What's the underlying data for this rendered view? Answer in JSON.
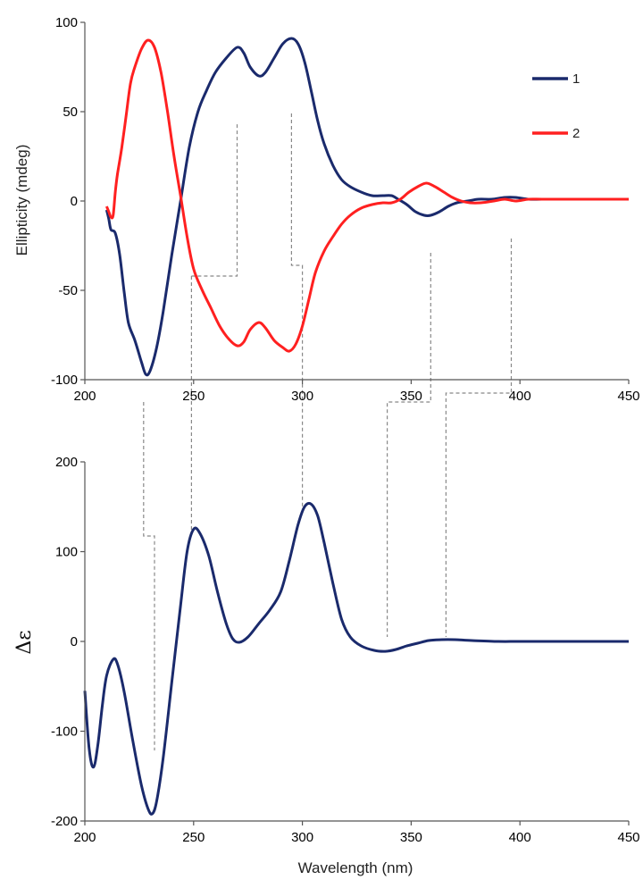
{
  "chart_data": [
    {
      "type": "line",
      "xlabel": "",
      "ylabel": "Ellipticity (mdeg)",
      "xlim": [
        200,
        450
      ],
      "ylim": [
        -100,
        100
      ],
      "x_ticks": [
        "200",
        "250",
        "300",
        "350",
        "400",
        "450"
      ],
      "y_ticks": [
        "-100",
        "-50",
        "0",
        "50",
        "100"
      ],
      "legend_position": "top-right",
      "grid": false,
      "series": [
        {
          "name": "1",
          "color": "#1a2a6c",
          "points": [
            [
              210,
              -5
            ],
            [
              211,
              -10
            ],
            [
              212,
              -16
            ],
            [
              214,
              -18
            ],
            [
              216,
              -30
            ],
            [
              218,
              -50
            ],
            [
              220,
              -68
            ],
            [
              223,
              -78
            ],
            [
              226,
              -90
            ],
            [
              228,
              -97
            ],
            [
              230,
              -95
            ],
            [
              233,
              -82
            ],
            [
              236,
              -62
            ],
            [
              240,
              -30
            ],
            [
              244,
              0
            ],
            [
              248,
              30
            ],
            [
              252,
              50
            ],
            [
              256,
              62
            ],
            [
              260,
              72
            ],
            [
              265,
              80
            ],
            [
              270,
              86
            ],
            [
              273,
              83
            ],
            [
              276,
              75
            ],
            [
              280,
              70
            ],
            [
              283,
              72
            ],
            [
              287,
              80
            ],
            [
              291,
              88
            ],
            [
              295,
              91
            ],
            [
              298,
              88
            ],
            [
              301,
              78
            ],
            [
              304,
              62
            ],
            [
              307,
              45
            ],
            [
              310,
              32
            ],
            [
              314,
              20
            ],
            [
              318,
              12
            ],
            [
              322,
              8
            ],
            [
              327,
              5
            ],
            [
              332,
              3
            ],
            [
              337,
              3
            ],
            [
              341,
              3
            ],
            [
              344,
              1
            ],
            [
              348,
              -2
            ],
            [
              352,
              -6
            ],
            [
              356,
              -8
            ],
            [
              359,
              -8
            ],
            [
              363,
              -6
            ],
            [
              367,
              -3
            ],
            [
              371,
              -1
            ],
            [
              376,
              0
            ],
            [
              381,
              1
            ],
            [
              387,
              1
            ],
            [
              393,
              2
            ],
            [
              398,
              2
            ],
            [
              404,
              1
            ],
            [
              410,
              1
            ],
            [
              420,
              1
            ],
            [
              430,
              1
            ],
            [
              440,
              1
            ],
            [
              450,
              1
            ]
          ]
        },
        {
          "name": "2",
          "color": "#ff2020",
          "points": [
            [
              210,
              -3
            ],
            [
              211,
              -6
            ],
            [
              212,
              -9
            ],
            [
              213,
              -8
            ],
            [
              214,
              5
            ],
            [
              215,
              15
            ],
            [
              217,
              30
            ],
            [
              219,
              48
            ],
            [
              221,
              66
            ],
            [
              223,
              75
            ],
            [
              226,
              85
            ],
            [
              229,
              90
            ],
            [
              232,
              86
            ],
            [
              235,
              72
            ],
            [
              238,
              50
            ],
            [
              241,
              25
            ],
            [
              244,
              3
            ],
            [
              247,
              -20
            ],
            [
              250,
              -38
            ],
            [
              254,
              -50
            ],
            [
              258,
              -60
            ],
            [
              262,
              -70
            ],
            [
              266,
              -77
            ],
            [
              270,
              -81
            ],
            [
              273,
              -79
            ],
            [
              276,
              -72
            ],
            [
              280,
              -68
            ],
            [
              283,
              -71
            ],
            [
              287,
              -78
            ],
            [
              291,
              -82
            ],
            [
              294,
              -84
            ],
            [
              297,
              -80
            ],
            [
              300,
              -70
            ],
            [
              303,
              -55
            ],
            [
              306,
              -40
            ],
            [
              310,
              -28
            ],
            [
              314,
              -20
            ],
            [
              318,
              -13
            ],
            [
              322,
              -8
            ],
            [
              327,
              -4
            ],
            [
              332,
              -2
            ],
            [
              337,
              -1
            ],
            [
              341,
              -1
            ],
            [
              345,
              1
            ],
            [
              349,
              5
            ],
            [
              353,
              8
            ],
            [
              357,
              10
            ],
            [
              361,
              8
            ],
            [
              365,
              5
            ],
            [
              369,
              2
            ],
            [
              373,
              0
            ],
            [
              377,
              -1
            ],
            [
              382,
              -1
            ],
            [
              388,
              0
            ],
            [
              393,
              1
            ],
            [
              398,
              0
            ],
            [
              404,
              1
            ],
            [
              410,
              1
            ],
            [
              420,
              1
            ],
            [
              430,
              1
            ],
            [
              440,
              1
            ],
            [
              450,
              1
            ]
          ]
        }
      ]
    },
    {
      "type": "line",
      "xlabel": "Wavelength (nm)",
      "ylabel": "Δε",
      "xlim": [
        200,
        450
      ],
      "ylim": [
        -200,
        200
      ],
      "x_ticks": [
        "200",
        "250",
        "300",
        "350",
        "400",
        "450"
      ],
      "y_ticks": [
        "-200",
        "-100",
        "0",
        "100",
        "200"
      ],
      "grid": false,
      "series": [
        {
          "color": "#1a2a6c",
          "points": [
            [
              200,
              -55
            ],
            [
              202,
              -120
            ],
            [
              204,
              -140
            ],
            [
              206,
              -115
            ],
            [
              208,
              -72
            ],
            [
              210,
              -38
            ],
            [
              213,
              -20
            ],
            [
              215,
              -25
            ],
            [
              218,
              -55
            ],
            [
              222,
              -110
            ],
            [
              226,
              -160
            ],
            [
              229,
              -186
            ],
            [
              231,
              -192
            ],
            [
              233,
              -178
            ],
            [
              236,
              -130
            ],
            [
              240,
              -45
            ],
            [
              244,
              40
            ],
            [
              247,
              100
            ],
            [
              250,
              125
            ],
            [
              253,
              120
            ],
            [
              257,
              95
            ],
            [
              261,
              55
            ],
            [
              265,
              20
            ],
            [
              268,
              3
            ],
            [
              271,
              -1
            ],
            [
              275,
              5
            ],
            [
              280,
              20
            ],
            [
              285,
              35
            ],
            [
              290,
              55
            ],
            [
              294,
              90
            ],
            [
              298,
              130
            ],
            [
              301,
              150
            ],
            [
              304,
              153
            ],
            [
              307,
              140
            ],
            [
              310,
              110
            ],
            [
              314,
              65
            ],
            [
              318,
              25
            ],
            [
              322,
              5
            ],
            [
              327,
              -5
            ],
            [
              333,
              -10
            ],
            [
              338,
              -11
            ],
            [
              343,
              -9
            ],
            [
              348,
              -5
            ],
            [
              353,
              -2
            ],
            [
              358,
              1
            ],
            [
              364,
              2
            ],
            [
              370,
              2
            ],
            [
              378,
              1
            ],
            [
              390,
              0
            ],
            [
              400,
              0
            ],
            [
              420,
              0
            ],
            [
              440,
              0
            ],
            [
              450,
              0
            ]
          ]
        }
      ]
    }
  ],
  "transitions": {
    "line_color": "#888888",
    "upper": [
      [
        249,
        -42
      ],
      [
        270,
        43
      ],
      [
        295,
        49
      ],
      [
        300,
        -36
      ],
      [
        359,
        -29
      ],
      [
        396,
        -21
      ]
    ],
    "lower": [
      [
        227,
        118
      ],
      [
        249,
        0
      ],
      [
        300,
        0
      ],
      [
        339,
        126
      ],
      [
        359,
        126
      ],
      [
        366,
        139
      ],
      [
        396,
        139
      ]
    ]
  },
  "legend": [
    {
      "label": "1",
      "color": "#1a2a6c"
    },
    {
      "label": "2",
      "color": "#ff2020"
    }
  ]
}
